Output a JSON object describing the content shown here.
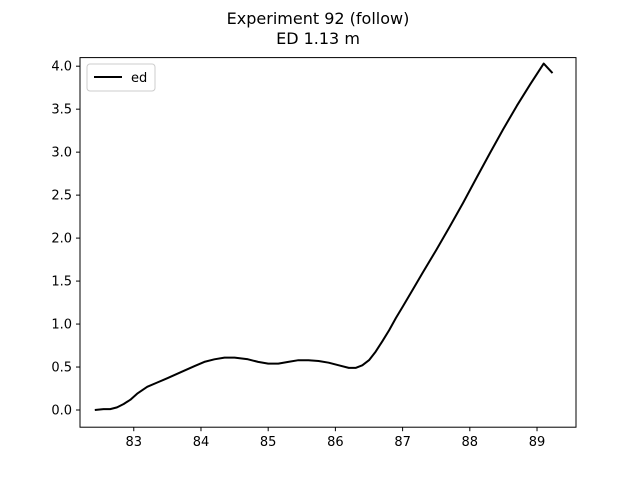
{
  "chart_data": {
    "type": "line",
    "title": "Experiment 92 (follow)",
    "subtitle": "ED 1.13 m",
    "xlabel": "",
    "ylabel": "",
    "xlim": [
      82.2,
      89.58
    ],
    "ylim": [
      -0.2,
      4.1
    ],
    "x_ticks": [
      83,
      84,
      85,
      86,
      87,
      88,
      89
    ],
    "x_tick_labels": [
      "83",
      "84",
      "85",
      "86",
      "87",
      "88",
      "89"
    ],
    "y_ticks": [
      0.0,
      0.5,
      1.0,
      1.5,
      2.0,
      2.5,
      3.0,
      3.5,
      4.0
    ],
    "y_tick_labels": [
      "0.0",
      "0.5",
      "1.0",
      "1.5",
      "2.0",
      "2.5",
      "3.0",
      "3.5",
      "4.0"
    ],
    "grid": false,
    "legend": {
      "position": "top-left"
    },
    "series": [
      {
        "name": "ed",
        "color": "#000000",
        "x": [
          82.42,
          82.55,
          82.65,
          82.75,
          82.85,
          82.95,
          83.05,
          83.2,
          83.35,
          83.5,
          83.7,
          83.9,
          84.05,
          84.2,
          84.35,
          84.5,
          84.7,
          84.85,
          85.0,
          85.15,
          85.3,
          85.45,
          85.6,
          85.75,
          85.9,
          86.05,
          86.2,
          86.3,
          86.4,
          86.5,
          86.6,
          86.7,
          86.8,
          86.9,
          87.0,
          87.15,
          87.3,
          87.5,
          87.7,
          87.9,
          88.1,
          88.3,
          88.5,
          88.7,
          88.9,
          89.1,
          89.23
        ],
        "y": [
          0.0,
          0.01,
          0.01,
          0.03,
          0.07,
          0.12,
          0.19,
          0.27,
          0.32,
          0.37,
          0.44,
          0.51,
          0.56,
          0.59,
          0.61,
          0.61,
          0.59,
          0.56,
          0.54,
          0.54,
          0.56,
          0.58,
          0.58,
          0.57,
          0.55,
          0.52,
          0.49,
          0.49,
          0.52,
          0.58,
          0.68,
          0.8,
          0.93,
          1.07,
          1.2,
          1.4,
          1.6,
          1.86,
          2.13,
          2.41,
          2.7,
          2.99,
          3.27,
          3.54,
          3.79,
          4.03,
          3.92
        ]
      }
    ]
  }
}
